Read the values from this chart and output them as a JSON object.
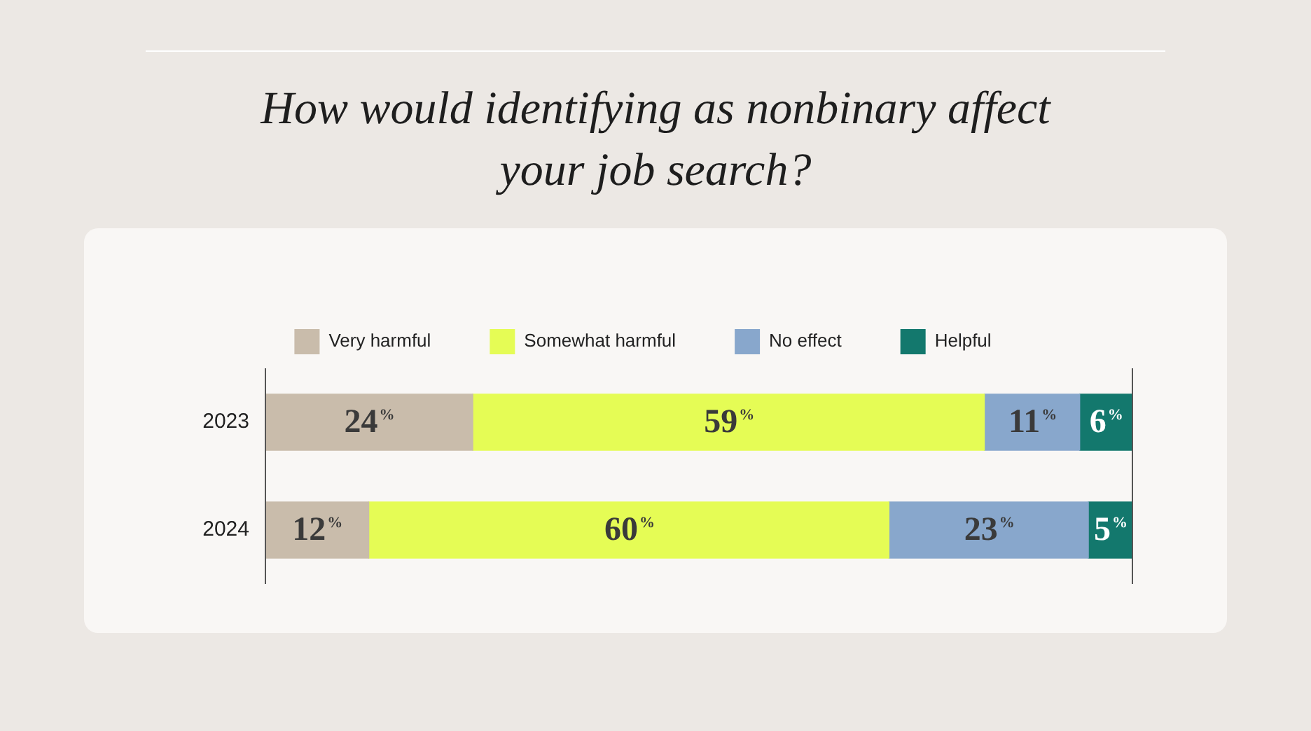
{
  "chart_data": {
    "type": "bar",
    "orientation": "horizontal",
    "stacked": true,
    "title": "How would identifying as nonbinary affect your job search?",
    "categories": [
      "2023",
      "2024"
    ],
    "xlim": [
      0,
      100
    ],
    "tick_labels": "y",
    "legend": "top",
    "grid": false,
    "series": [
      {
        "name": "Very harmful",
        "color": "#c9bcab",
        "values": [
          24,
          12
        ],
        "value_labels": [
          "24%",
          "12%"
        ]
      },
      {
        "name": "Somewhat harmful",
        "color": "#e5fc55",
        "values": [
          59,
          60
        ],
        "value_labels": [
          "59%",
          "60%"
        ]
      },
      {
        "name": "No effect",
        "color": "#88a7cc",
        "values": [
          11,
          23
        ],
        "value_labels": [
          "11%",
          "23%"
        ]
      },
      {
        "name": "Helpful",
        "color": "#13786d",
        "values": [
          6,
          5
        ],
        "value_labels": [
          "6%",
          "5%"
        ]
      }
    ]
  }
}
